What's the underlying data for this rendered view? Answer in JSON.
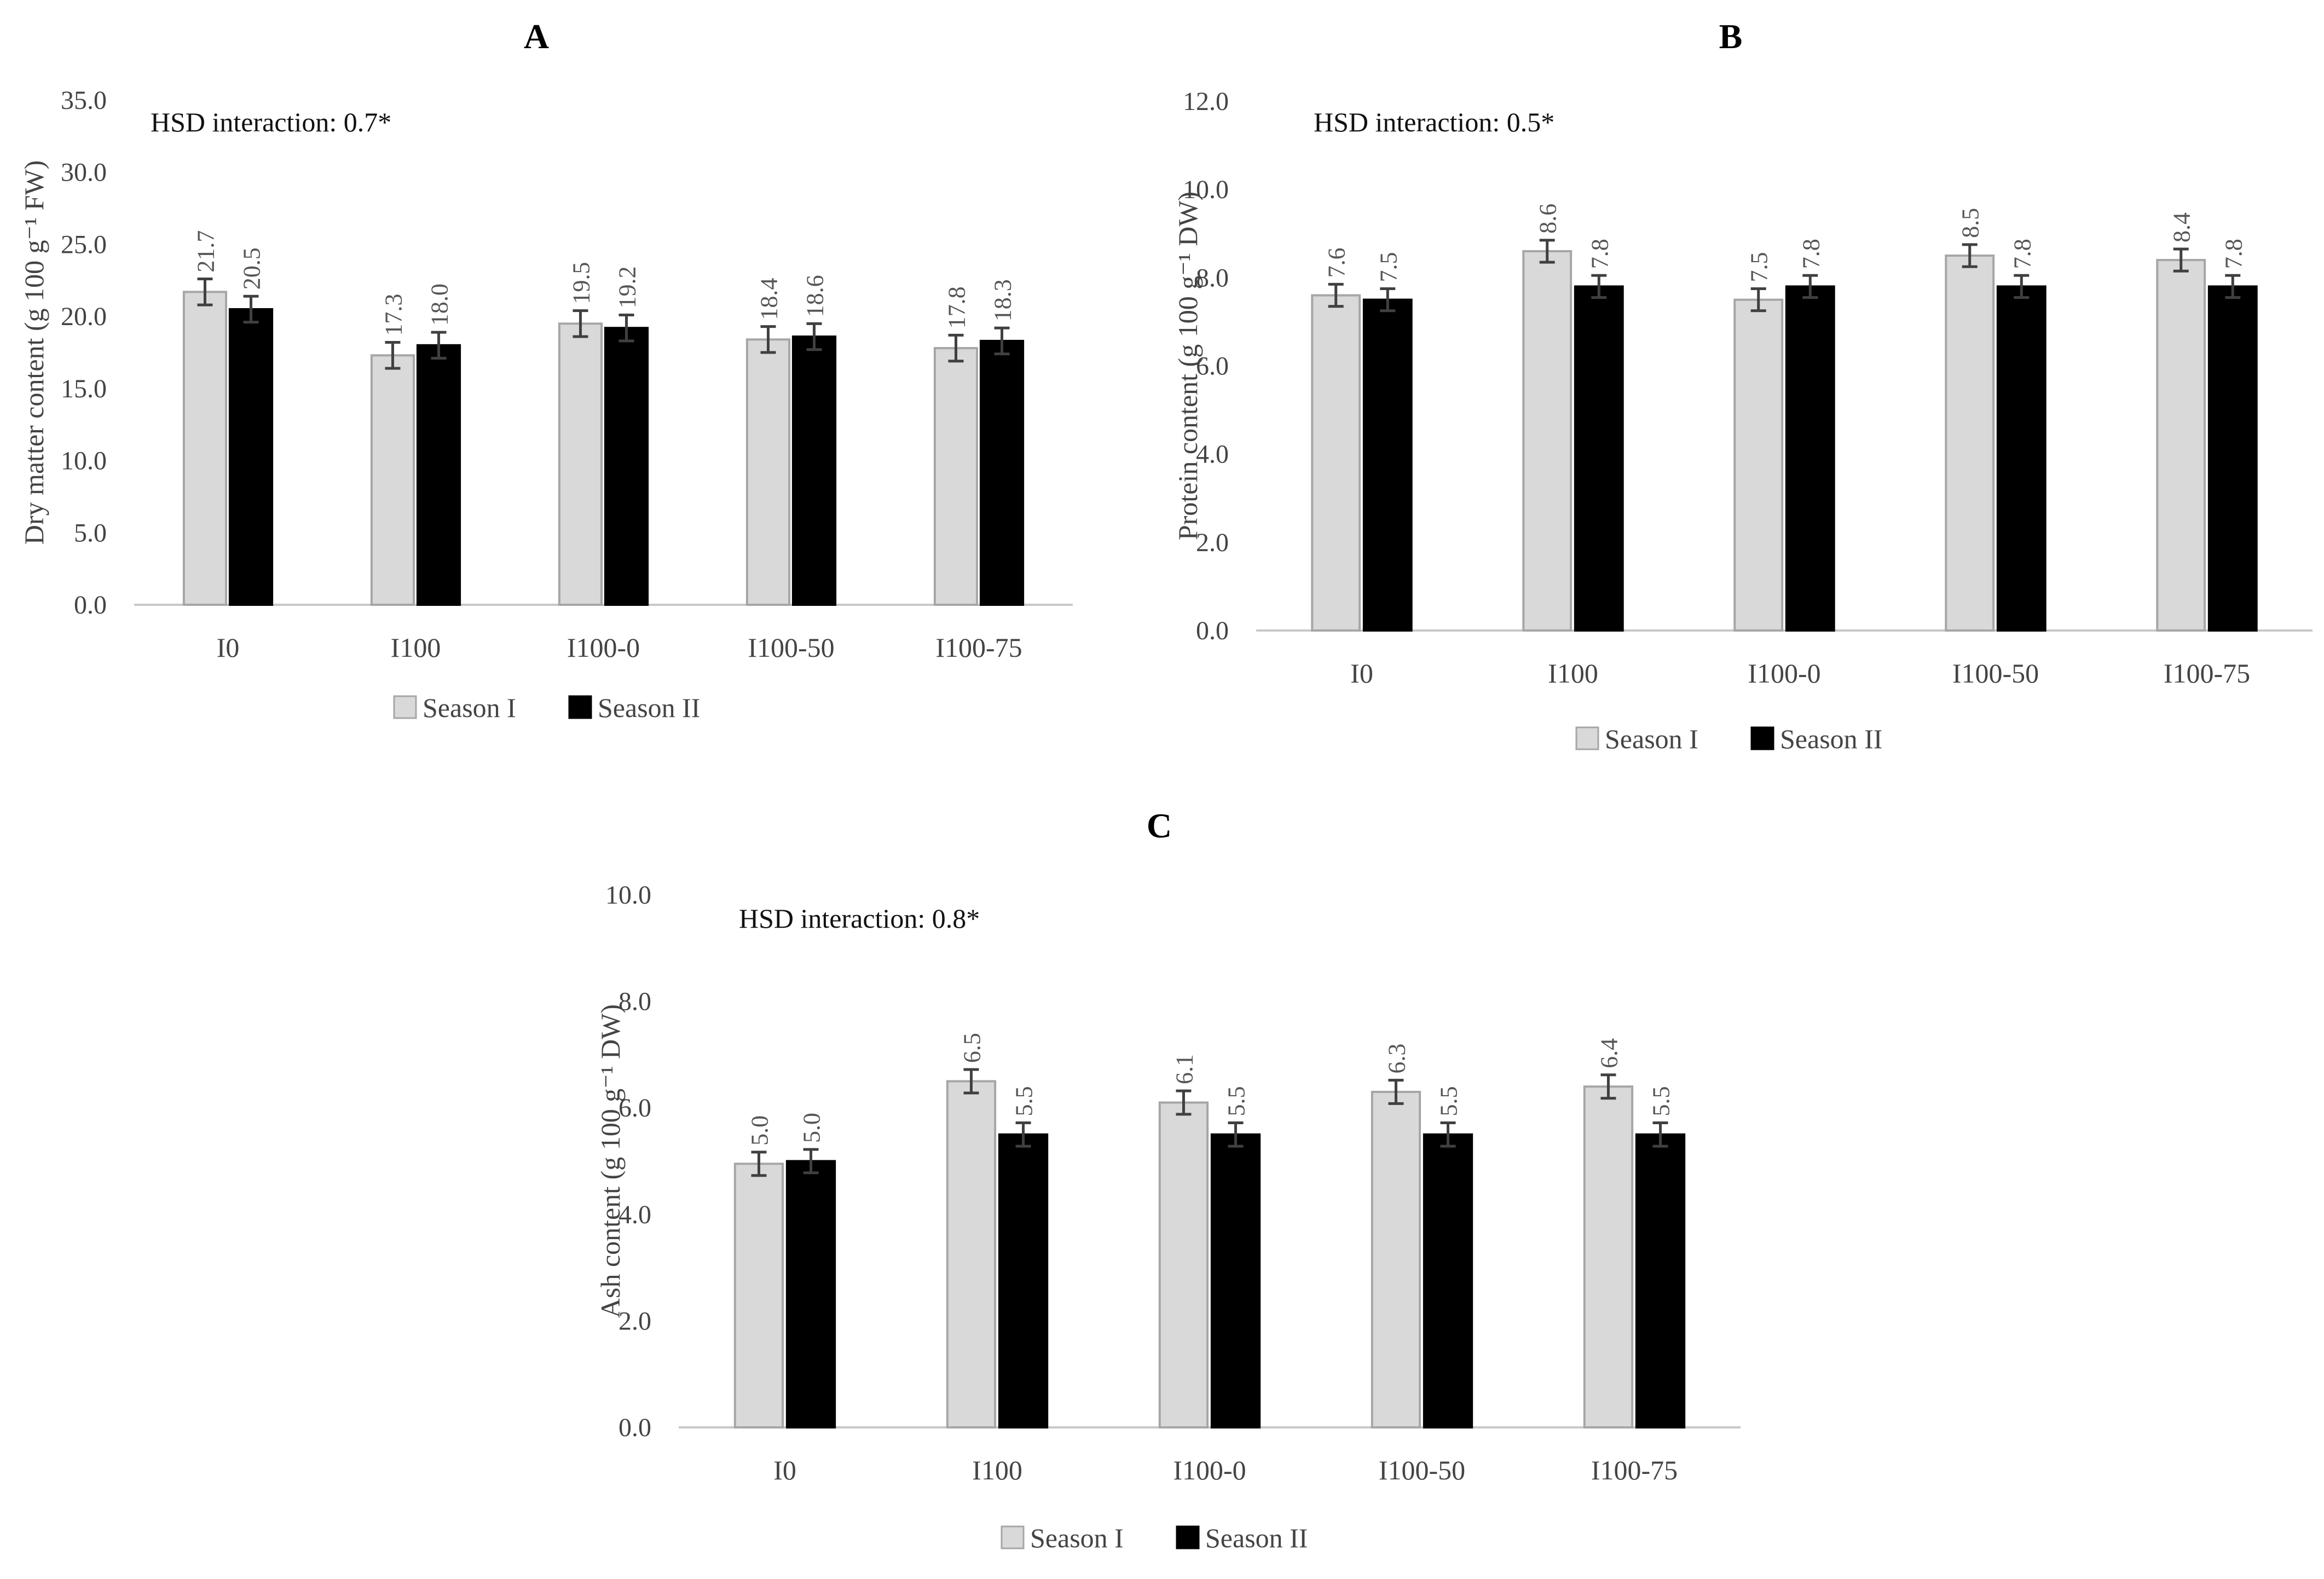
{
  "chart_data": [
    {
      "type": "bar",
      "panel": "A",
      "ylabel": "Dry matter content (g 100 g⁻¹ FW)",
      "annotation": "HSD interaction: 0.7*",
      "categories": [
        "I0",
        "I100",
        "I100-0",
        "I100-50",
        "I100-75"
      ],
      "ylim": [
        0,
        35
      ],
      "yticks": [
        "0.0",
        "5.0",
        "10.0",
        "15.0",
        "20.0",
        "25.0",
        "30.0",
        "35.0"
      ],
      "ytick_values": [
        0,
        5,
        10,
        15,
        20,
        25,
        30,
        35
      ],
      "error": 0.9,
      "series": [
        {
          "name": "Season I",
          "values": [
            21.7,
            17.3,
            19.5,
            18.4,
            17.8
          ],
          "labels": [
            "21.7",
            "17.3",
            "19.5",
            "18.4",
            "17.8"
          ],
          "color": "#d9d9d9"
        },
        {
          "name": "Season II",
          "values": [
            20.5,
            18.0,
            19.2,
            18.6,
            18.3
          ],
          "labels": [
            "20.5",
            "18.0",
            "19.2",
            "18.6",
            "18.3"
          ],
          "color": "#000000"
        }
      ]
    },
    {
      "type": "bar",
      "panel": "B",
      "ylabel": "Protein content (g 100 g⁻¹ DW)",
      "annotation": "HSD interaction: 0.5*",
      "categories": [
        "I0",
        "I100",
        "I100-0",
        "I100-50",
        "I100-75"
      ],
      "ylim": [
        0,
        12
      ],
      "yticks": [
        "0.0",
        "2.0",
        "4.0",
        "6.0",
        "8.0",
        "10.0",
        "12.0"
      ],
      "ytick_values": [
        0,
        2,
        4,
        6,
        8,
        10,
        12
      ],
      "error": 0.25,
      "series": [
        {
          "name": "Season I",
          "values": [
            7.6,
            8.6,
            7.5,
            8.5,
            8.4
          ],
          "labels": [
            "7.6",
            "8.6",
            "7.5",
            "8.5",
            "8.4"
          ],
          "color": "#d9d9d9"
        },
        {
          "name": "Season II",
          "values": [
            7.5,
            7.8,
            7.8,
            7.8,
            7.8
          ],
          "labels": [
            "7.5",
            "7.8",
            "7.8",
            "7.8",
            "7.8"
          ],
          "color": "#000000"
        }
      ]
    },
    {
      "type": "bar",
      "panel": "C",
      "ylabel": "Ash content (g 100 g⁻¹ DW)",
      "annotation": "HSD interaction: 0.8*",
      "categories": [
        "I0",
        "I100",
        "I100-0",
        "I100-50",
        "I100-75"
      ],
      "ylim": [
        0,
        10
      ],
      "yticks": [
        "0.0",
        "2.0",
        "4.0",
        "6.0",
        "8.0",
        "10.0"
      ],
      "ytick_values": [
        0,
        2,
        4,
        6,
        8,
        10
      ],
      "error": 0.22,
      "series": [
        {
          "name": "Season I",
          "values": [
            4.95,
            6.5,
            6.1,
            6.3,
            6.4
          ],
          "labels": [
            "5.0",
            "6.5",
            "6.1",
            "6.3",
            "6.4"
          ],
          "color": "#d9d9d9"
        },
        {
          "name": "Season II",
          "values": [
            5.0,
            5.5,
            5.5,
            5.5,
            5.5
          ],
          "labels": [
            "5.0",
            "5.5",
            "5.5",
            "5.5",
            "5.5"
          ],
          "color": "#000000"
        }
      ]
    }
  ]
}
